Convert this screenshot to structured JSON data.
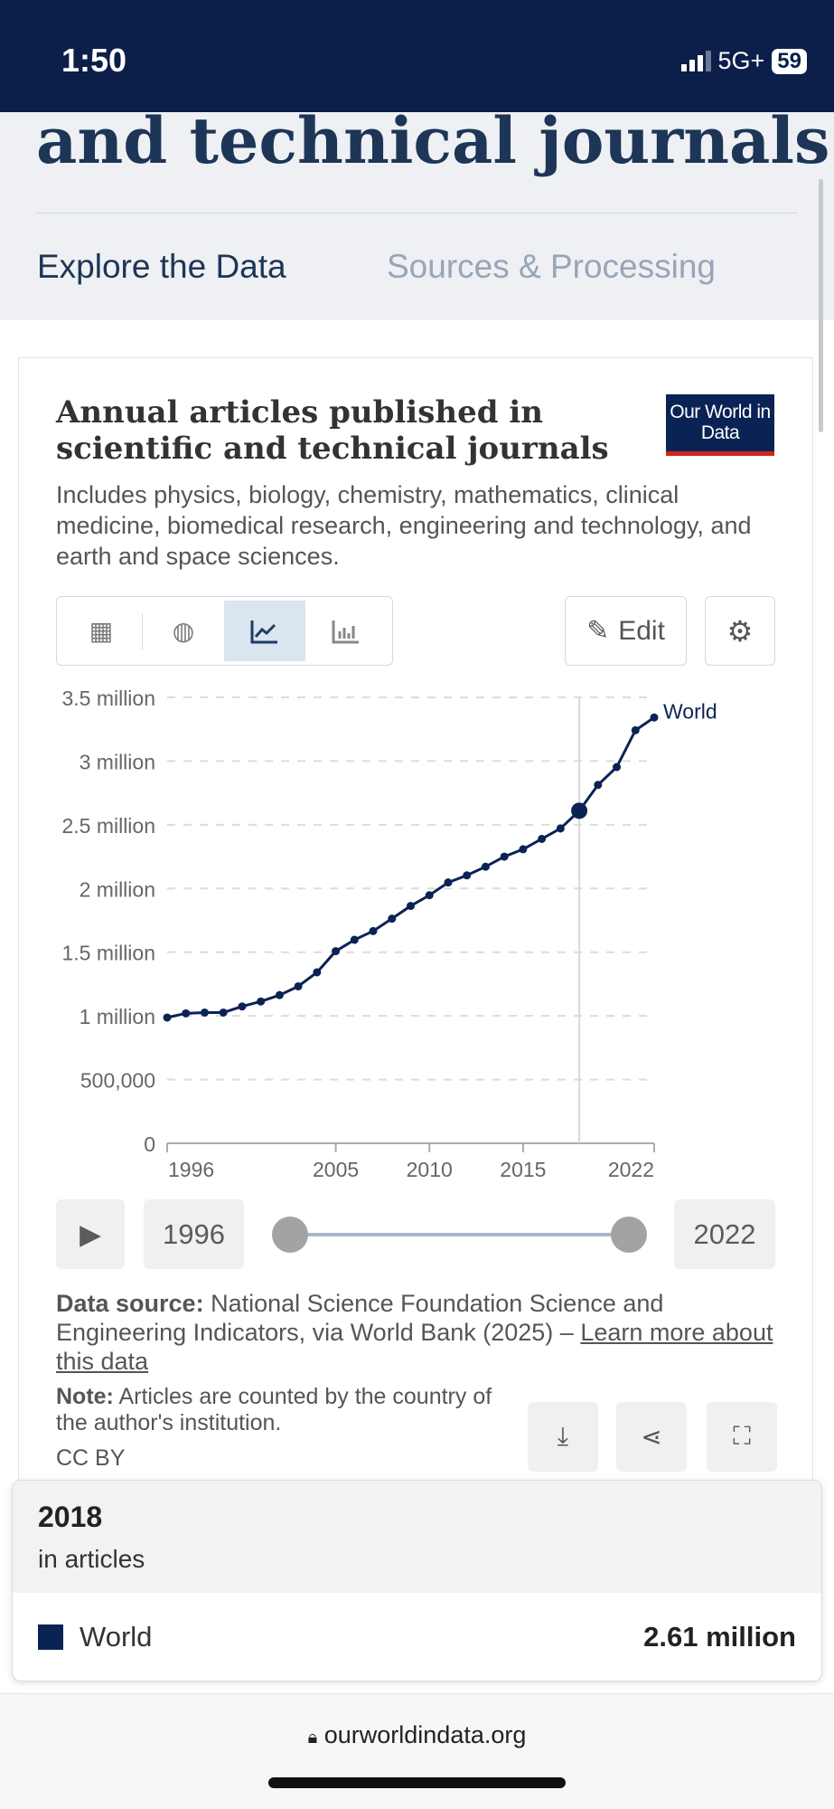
{
  "status": {
    "time": "1:50",
    "network": "5G+",
    "battery": "59"
  },
  "hero": {
    "heading": "and technical journals",
    "tabs": [
      {
        "label": "Explore the Data",
        "active": true
      },
      {
        "label": "Sources & Processing",
        "active": false
      }
    ]
  },
  "card": {
    "title": "Annual articles published in scientific and technical journals",
    "subtitle": "Includes physics, biology, chemistry, mathematics, clinical medicine, biomedical research, engineering and technology, and earth and space sciences.",
    "logo": "Our World in Data",
    "tools": [
      {
        "icon": "table-icon"
      },
      {
        "icon": "globe-icon"
      },
      {
        "icon": "line-chart-icon",
        "active": true
      },
      {
        "icon": "bar-chart-icon"
      }
    ],
    "edit_label": "Edit",
    "timeline": {
      "start": "1996",
      "end": "2022"
    },
    "source_label": "Data source:",
    "source_text": " National Science Foundation Science and Engineering Indicators, via World Bank (2025) – ",
    "source_link": "Learn more about this data",
    "note_label": "Note:",
    "note_text": " Articles are counted by the country of the author's institution.",
    "license": "CC BY"
  },
  "chart_data": {
    "type": "line",
    "ylim": [
      0,
      3500000
    ],
    "yticks": [
      0,
      500000,
      1000000,
      1500000,
      2000000,
      2500000,
      3000000,
      3500000
    ],
    "ytick_labels": [
      "0",
      "500,000",
      "1 million",
      "1.5 million",
      "2 million",
      "2.5 million",
      "3 million",
      "3.5 million"
    ],
    "xticks": [
      1996,
      2005,
      2010,
      2015,
      2022
    ],
    "xtick_labels": [
      "1996",
      "2005",
      "2010",
      "2015",
      "2022"
    ],
    "grid": "horizontal dashed",
    "color": "#0b2354",
    "highlight_year": 2018,
    "x": [
      1996,
      1997,
      1998,
      1999,
      2000,
      2001,
      2002,
      2003,
      2004,
      2005,
      2006,
      2007,
      2008,
      2009,
      2010,
      2011,
      2012,
      2013,
      2014,
      2015,
      2016,
      2017,
      2018,
      2019,
      2020,
      2021,
      2022
    ],
    "series": [
      {
        "name": "World",
        "values": [
          987000,
          1020000,
          1026000,
          1026000,
          1074000,
          1113000,
          1163000,
          1232000,
          1342000,
          1508000,
          1597000,
          1666000,
          1763000,
          1863000,
          1947000,
          2047000,
          2103000,
          2171000,
          2250000,
          2308000,
          2389000,
          2471000,
          2610000,
          2813000,
          2953000,
          3242000,
          3342000
        ]
      }
    ]
  },
  "tooltip": {
    "year": "2018",
    "unit": "in articles",
    "entity": "World",
    "value": "2.61 million"
  },
  "browser": {
    "url": "ourworldindata.org"
  }
}
